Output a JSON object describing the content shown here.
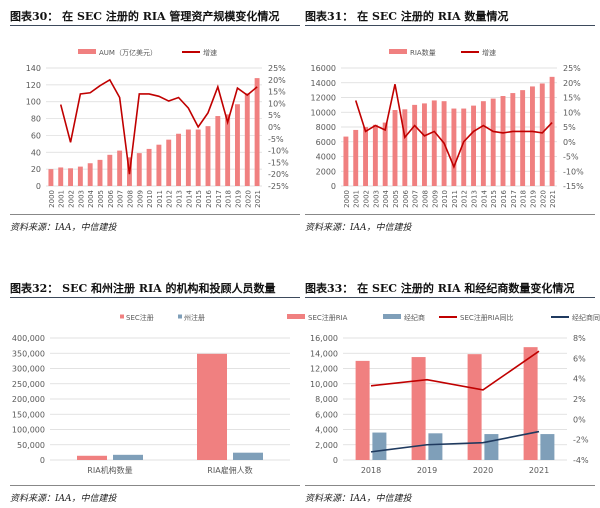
{
  "source": "资料来源：IAA，中信建投",
  "colors": {
    "bar": "#f08080",
    "bar2": "#7f9fb9",
    "line": "#c00000",
    "line2": "#1f3a5f",
    "grid": "#d9d9d9"
  },
  "chart_data": [
    {
      "id": "c30",
      "type": "bar+line",
      "title": "图表30：  在 SEC 注册的 RIA 管理资产规模变化情况",
      "categories": [
        "2000",
        "2001",
        "2002",
        "2003",
        "2004",
        "2005",
        "2006",
        "2007",
        "2008",
        "2009",
        "2010",
        "2011",
        "2012",
        "2013",
        "2014",
        "2015",
        "2016",
        "2017",
        "2018",
        "2019",
        "2020",
        "2021"
      ],
      "ylim": [
        0,
        140
      ],
      "yticks": [
        0,
        20,
        40,
        60,
        80,
        100,
        120,
        140
      ],
      "y2lim": [
        -25,
        25
      ],
      "y2ticks": [
        -25,
        -20,
        -15,
        -10,
        -5,
        0,
        5,
        10,
        15,
        20,
        25
      ],
      "bars": [
        {
          "name": "AUM（万亿美元）",
          "values": [
            20,
            22,
            21,
            23,
            27,
            31,
            37,
            42,
            34,
            39,
            44,
            49,
            55,
            62,
            67,
            67,
            71,
            83,
            85,
            97,
            110,
            128
          ]
        }
      ],
      "lines": [
        {
          "name": "增速",
          "values": [
            null,
            9.5,
            -6.5,
            14,
            14.5,
            17.5,
            20,
            12.5,
            -20,
            14,
            14,
            13,
            11,
            12.5,
            8,
            0,
            6,
            17,
            2,
            16.5,
            13.5,
            17
          ]
        }
      ],
      "rotate_x": true,
      "comma": false
    },
    {
      "id": "c31",
      "type": "bar+line",
      "title": "图表31：  在 SEC 注册的 RIA 数量情况",
      "categories": [
        "2000",
        "2001",
        "2002",
        "2003",
        "2004",
        "2005",
        "2006",
        "2007",
        "2008",
        "2009",
        "2010",
        "2011",
        "2012",
        "2013",
        "2014",
        "2015",
        "2016",
        "2017",
        "2018",
        "2019",
        "2020",
        "2021"
      ],
      "ylim": [
        0,
        16000
      ],
      "yticks": [
        0,
        2000,
        4000,
        6000,
        8000,
        10000,
        12000,
        14000,
        16000
      ],
      "y2lim": [
        -15,
        25
      ],
      "y2ticks": [
        -15,
        -10,
        -5,
        0,
        5,
        10,
        15,
        20,
        25
      ],
      "bars": [
        {
          "name": "RIA数量",
          "values": [
            6700,
            7600,
            8000,
            8300,
            8600,
            10300,
            10400,
            11000,
            11200,
            11600,
            11500,
            10500,
            10500,
            10900,
            11500,
            11850,
            12200,
            12600,
            13000,
            13500,
            13900,
            14800
          ]
        }
      ],
      "lines": [
        {
          "name": "增速",
          "values": [
            null,
            14,
            3.5,
            5.5,
            4,
            19.5,
            1.5,
            5.5,
            2,
            3.5,
            -0.5,
            -8.5,
            0,
            3.5,
            5.5,
            3.5,
            3,
            3.5,
            3.5,
            3.5,
            3,
            6.5
          ]
        }
      ],
      "rotate_x": true,
      "comma": false
    },
    {
      "id": "c32",
      "type": "bar",
      "title": "图表32：  SEC 和州注册 RIA 的机构和投顾人员数量",
      "categories": [
        "RIA机构数量",
        "RIA雇佣人数"
      ],
      "ylim": [
        0,
        400000
      ],
      "yticks": [
        0,
        50000,
        100000,
        150000,
        200000,
        250000,
        300000,
        350000,
        400000
      ],
      "bars": [
        {
          "name": "SEC注册",
          "values": [
            13880,
            348000
          ]
        },
        {
          "name": "州注册",
          "values": [
            17000,
            24000
          ]
        }
      ],
      "lines": [],
      "rotate_x": false,
      "comma": true
    },
    {
      "id": "c33",
      "type": "bar+line",
      "title": "图表33：  在 SEC 注册的 RIA 和经纪商数量变化情况",
      "categories": [
        "2018",
        "2019",
        "2020",
        "2021"
      ],
      "ylim": [
        0,
        16000
      ],
      "yticks": [
        0,
        2000,
        4000,
        6000,
        8000,
        10000,
        12000,
        14000,
        16000
      ],
      "y2lim": [
        -4,
        8
      ],
      "y2ticks": [
        -4,
        -2,
        0,
        2,
        4,
        6,
        8
      ],
      "bars": [
        {
          "name": "SEC注册RIA",
          "values": [
            13000,
            13500,
            13880,
            14800
          ]
        },
        {
          "name": "经纪商",
          "values": [
            3600,
            3500,
            3400,
            3400
          ]
        }
      ],
      "lines": [
        {
          "name": "SEC注册RIA同比",
          "values": [
            3.3,
            3.9,
            2.9,
            6.7
          ]
        },
        {
          "name": "经纪商同比",
          "values": [
            -3.2,
            -2.5,
            -2.3,
            -1.2
          ]
        }
      ],
      "rotate_x": false,
      "comma": true
    }
  ]
}
